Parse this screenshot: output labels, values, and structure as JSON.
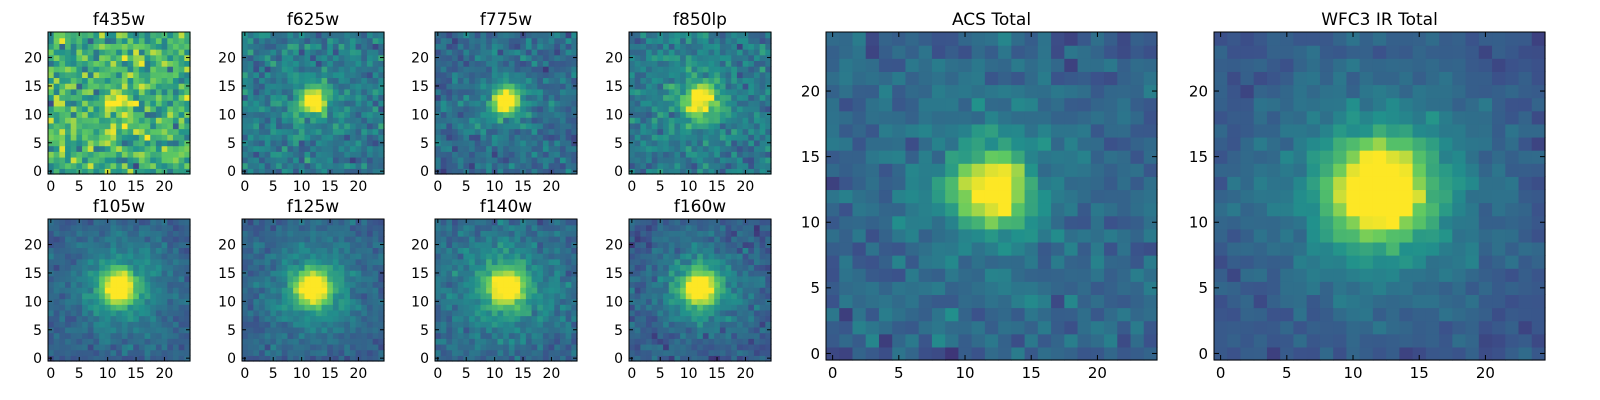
{
  "chart_data": {
    "type": "heatmap",
    "colormap": "viridis",
    "colormap_stops": [
      "#440154",
      "#3b528b",
      "#21918c",
      "#5ec962",
      "#fde725"
    ],
    "grid_size": 25,
    "source_center": [
      12,
      12.5
    ],
    "panels": [
      {
        "id": "f435w",
        "title": "f435w",
        "xticks": [
          0,
          5,
          10,
          15,
          20
        ],
        "yticks": [
          0,
          5,
          10,
          15,
          20
        ],
        "xlim": [
          0,
          25
        ],
        "ylim": [
          0,
          25
        ],
        "peak_level": 0.95,
        "background_level": 0.62,
        "noise": 0.3,
        "core_width": 1.4,
        "halo_level": 0.05,
        "halo_width": 6,
        "seed": 11
      },
      {
        "id": "f625w",
        "title": "f625w",
        "xticks": [
          0,
          5,
          10,
          15,
          20
        ],
        "yticks": [
          0,
          5,
          10,
          15,
          20
        ],
        "xlim": [
          0,
          25
        ],
        "ylim": [
          0,
          25
        ],
        "peak_level": 1.0,
        "background_level": 0.4,
        "noise": 0.16,
        "core_width": 1.6,
        "halo_level": 0.08,
        "halo_width": 5,
        "seed": 23
      },
      {
        "id": "f775w",
        "title": "f775w",
        "xticks": [
          0,
          5,
          10,
          15,
          20
        ],
        "yticks": [
          0,
          5,
          10,
          15,
          20
        ],
        "xlim": [
          0,
          25
        ],
        "ylim": [
          0,
          25
        ],
        "peak_level": 1.0,
        "background_level": 0.34,
        "noise": 0.14,
        "core_width": 1.7,
        "halo_level": 0.1,
        "halo_width": 5,
        "seed": 37
      },
      {
        "id": "f850lp",
        "title": "f850lp",
        "xticks": [
          0,
          5,
          10,
          15,
          20
        ],
        "yticks": [
          0,
          5,
          10,
          15,
          20
        ],
        "xlim": [
          0,
          25
        ],
        "ylim": [
          0,
          25
        ],
        "peak_level": 0.97,
        "background_level": 0.4,
        "noise": 0.15,
        "core_width": 1.9,
        "halo_level": 0.12,
        "halo_width": 5,
        "seed": 41
      },
      {
        "id": "f105w",
        "title": "f105w",
        "xticks": [
          0,
          5,
          10,
          15,
          20
        ],
        "yticks": [
          0,
          5,
          10,
          15,
          20
        ],
        "xlim": [
          0,
          25
        ],
        "ylim": [
          0,
          25
        ],
        "peak_level": 1.0,
        "background_level": 0.3,
        "noise": 0.09,
        "core_width": 2.0,
        "halo_level": 0.22,
        "halo_width": 6,
        "seed": 53
      },
      {
        "id": "f125w",
        "title": "f125w",
        "xticks": [
          0,
          5,
          10,
          15,
          20
        ],
        "yticks": [
          0,
          5,
          10,
          15,
          20
        ],
        "xlim": [
          0,
          25
        ],
        "ylim": [
          0,
          25
        ],
        "peak_level": 1.0,
        "background_level": 0.3,
        "noise": 0.09,
        "core_width": 2.0,
        "halo_level": 0.24,
        "halo_width": 6,
        "seed": 67
      },
      {
        "id": "f140w",
        "title": "f140w",
        "xticks": [
          0,
          5,
          10,
          15,
          20
        ],
        "yticks": [
          0,
          5,
          10,
          15,
          20
        ],
        "xlim": [
          0,
          25
        ],
        "ylim": [
          0,
          25
        ],
        "peak_level": 1.0,
        "background_level": 0.33,
        "noise": 0.11,
        "core_width": 2.0,
        "halo_level": 0.24,
        "halo_width": 6,
        "seed": 79
      },
      {
        "id": "f160w",
        "title": "f160w",
        "xticks": [
          0,
          5,
          10,
          15,
          20
        ],
        "yticks": [
          0,
          5,
          10,
          15,
          20
        ],
        "xlim": [
          0,
          25
        ],
        "ylim": [
          0,
          25
        ],
        "peak_level": 1.0,
        "background_level": 0.28,
        "noise": 0.11,
        "core_width": 2.0,
        "halo_level": 0.24,
        "halo_width": 6,
        "seed": 83
      },
      {
        "id": "acs-total",
        "title": "ACS Total",
        "xticks": [
          0,
          5,
          10,
          15,
          20
        ],
        "yticks": [
          0,
          5,
          10,
          15,
          20
        ],
        "xlim": [
          0,
          25
        ],
        "ylim": [
          0,
          25
        ],
        "peak_level": 1.0,
        "background_level": 0.32,
        "noise": 0.11,
        "core_width": 1.8,
        "halo_level": 0.12,
        "halo_width": 5,
        "seed": 97
      },
      {
        "id": "wfc3-ir-total",
        "title": "WFC3 IR Total",
        "xticks": [
          0,
          5,
          10,
          15,
          20
        ],
        "yticks": [
          0,
          5,
          10,
          15,
          20
        ],
        "xlim": [
          0,
          25
        ],
        "ylim": [
          0,
          25
        ],
        "peak_level": 1.0,
        "background_level": 0.26,
        "noise": 0.07,
        "core_width": 2.3,
        "halo_level": 0.3,
        "halo_width": 6,
        "seed": 101
      }
    ]
  }
}
